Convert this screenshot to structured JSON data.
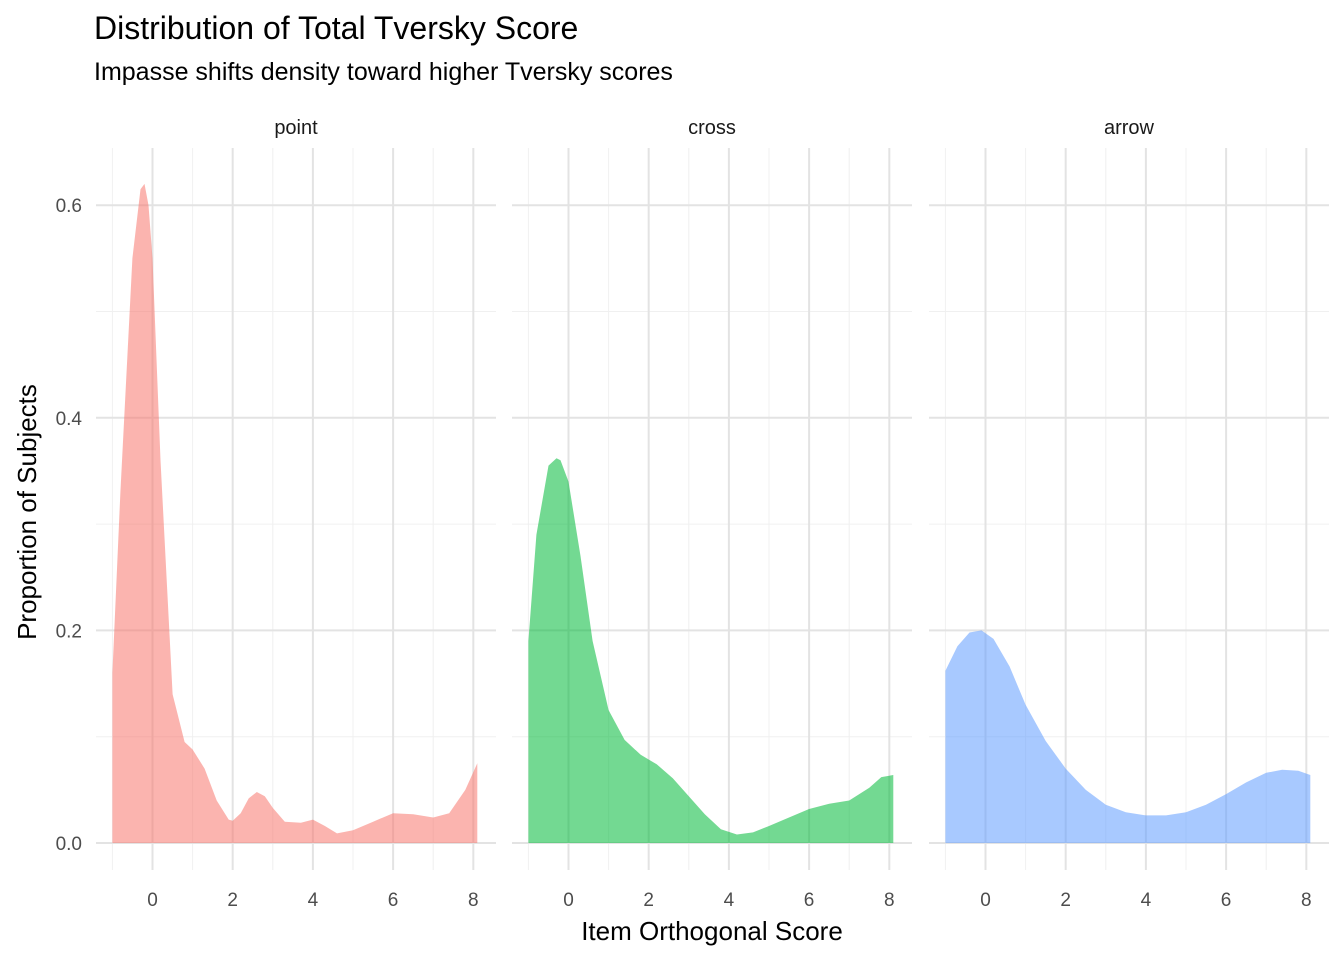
{
  "title": "Distribution of Total Tversky Score",
  "subtitle": "Impasse shifts density toward higher Tversky scores",
  "chart_data": {
    "type": "area",
    "title": "Distribution of Total Tversky Score",
    "subtitle": "Impasse shifts density toward higher Tversky scores",
    "xlabel": "Item Orthogonal Score",
    "ylabel": "Proportion of Subjects",
    "xlim": [
      -1,
      8.1
    ],
    "ylim": [
      0,
      0.65
    ],
    "xticks": [
      0,
      2,
      4,
      6,
      8
    ],
    "yticks": [
      0.0,
      0.2,
      0.4,
      0.6
    ],
    "ytick_labels": [
      "0.0",
      "0.2",
      "0.4",
      "0.6"
    ],
    "grid": true,
    "legend": "none",
    "facets": [
      {
        "name": "point",
        "color": "#F8766D",
        "x": [
          -1,
          -0.8,
          -0.5,
          -0.3,
          -0.2,
          -0.1,
          0,
          0.2,
          0.5,
          0.8,
          1.0,
          1.3,
          1.6,
          1.9,
          2.0,
          2.2,
          2.4,
          2.6,
          2.8,
          3.0,
          3.3,
          3.7,
          4.0,
          4.3,
          4.6,
          5.0,
          5.5,
          6.0,
          6.5,
          7.0,
          7.4,
          7.8,
          8.1
        ],
        "y": [
          0.16,
          0.33,
          0.55,
          0.615,
          0.62,
          0.6,
          0.55,
          0.36,
          0.14,
          0.095,
          0.088,
          0.07,
          0.04,
          0.022,
          0.021,
          0.028,
          0.042,
          0.048,
          0.044,
          0.033,
          0.02,
          0.019,
          0.022,
          0.016,
          0.009,
          0.012,
          0.02,
          0.028,
          0.027,
          0.024,
          0.028,
          0.05,
          0.075
        ]
      },
      {
        "name": "cross",
        "color": "#00BA38",
        "x": [
          -1,
          -0.8,
          -0.5,
          -0.3,
          -0.2,
          0,
          0.3,
          0.6,
          1.0,
          1.4,
          1.8,
          2.2,
          2.6,
          3.0,
          3.4,
          3.8,
          4.2,
          4.6,
          5.0,
          5.5,
          6.0,
          6.5,
          7.0,
          7.5,
          7.8,
          8.1
        ],
        "y": [
          0.19,
          0.29,
          0.355,
          0.362,
          0.36,
          0.34,
          0.27,
          0.19,
          0.125,
          0.097,
          0.083,
          0.074,
          0.061,
          0.044,
          0.027,
          0.013,
          0.008,
          0.01,
          0.016,
          0.024,
          0.032,
          0.037,
          0.04,
          0.052,
          0.062,
          0.064
        ]
      },
      {
        "name": "arrow",
        "color": "#619CFF",
        "x": [
          -1,
          -0.7,
          -0.4,
          -0.1,
          0.2,
          0.6,
          1.0,
          1.5,
          2.0,
          2.5,
          3.0,
          3.5,
          4.0,
          4.5,
          5.0,
          5.5,
          6.0,
          6.5,
          7.0,
          7.4,
          7.8,
          8.1
        ],
        "y": [
          0.162,
          0.185,
          0.198,
          0.2,
          0.192,
          0.166,
          0.13,
          0.096,
          0.07,
          0.05,
          0.036,
          0.029,
          0.026,
          0.026,
          0.029,
          0.036,
          0.046,
          0.057,
          0.066,
          0.069,
          0.068,
          0.064
        ]
      }
    ]
  }
}
